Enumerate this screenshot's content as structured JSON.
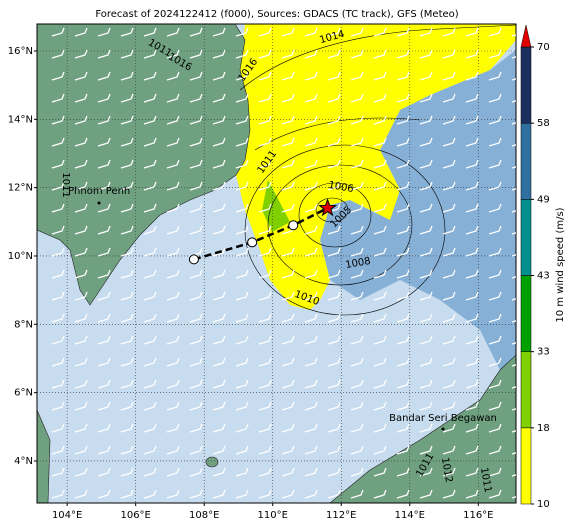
{
  "chart_data": {
    "type": "map",
    "title": "Forecast of 2024122412 (f000), Sources: GDACS (TC track), GFS (Meteo)",
    "xlim": [
      103.12,
      117.1
    ],
    "ylim": [
      2.77,
      16.79
    ],
    "xticks": [
      {
        "value": 104,
        "label": "104°E"
      },
      {
        "value": 106,
        "label": "106°E"
      },
      {
        "value": 108,
        "label": "108°E"
      },
      {
        "value": 110,
        "label": "110°E"
      },
      {
        "value": 112,
        "label": "112°E"
      },
      {
        "value": 114,
        "label": "114°E"
      },
      {
        "value": 116,
        "label": "116°E"
      }
    ],
    "yticks": [
      {
        "value": 4,
        "label": "4°N"
      },
      {
        "value": 6,
        "label": "6°N"
      },
      {
        "value": 8,
        "label": "8°N"
      },
      {
        "value": 10,
        "label": "10°N"
      },
      {
        "value": 12,
        "label": "12°N"
      },
      {
        "value": 14,
        "label": "14°N"
      },
      {
        "value": 16,
        "label": "16°N"
      }
    ],
    "grid": true,
    "track": {
      "lon": [
        107.7,
        109.4,
        110.6,
        111.6
      ],
      "lat": [
        9.9,
        10.4,
        10.9,
        11.4
      ],
      "color": "#000000",
      "current_color": "#e00000"
    },
    "places": [
      "Phnom Penh",
      "Bandar Seri Begawan"
    ],
    "contour_labels": [
      "1011",
      "1016",
      "1014",
      "1016",
      "1011",
      "1006",
      "1005",
      "1008",
      "1010",
      "1011",
      "1011",
      "1012",
      "1011"
    ],
    "colorbar": {
      "label": "10 m wind speed (m/s)",
      "ticks": [
        10,
        18,
        33,
        43,
        49,
        58,
        70
      ],
      "colors": [
        "#ffff00",
        "#80d000",
        "#00a000",
        "#009090",
        "#3070a0",
        "#1c3060"
      ],
      "extend_color": "#e00000"
    }
  }
}
